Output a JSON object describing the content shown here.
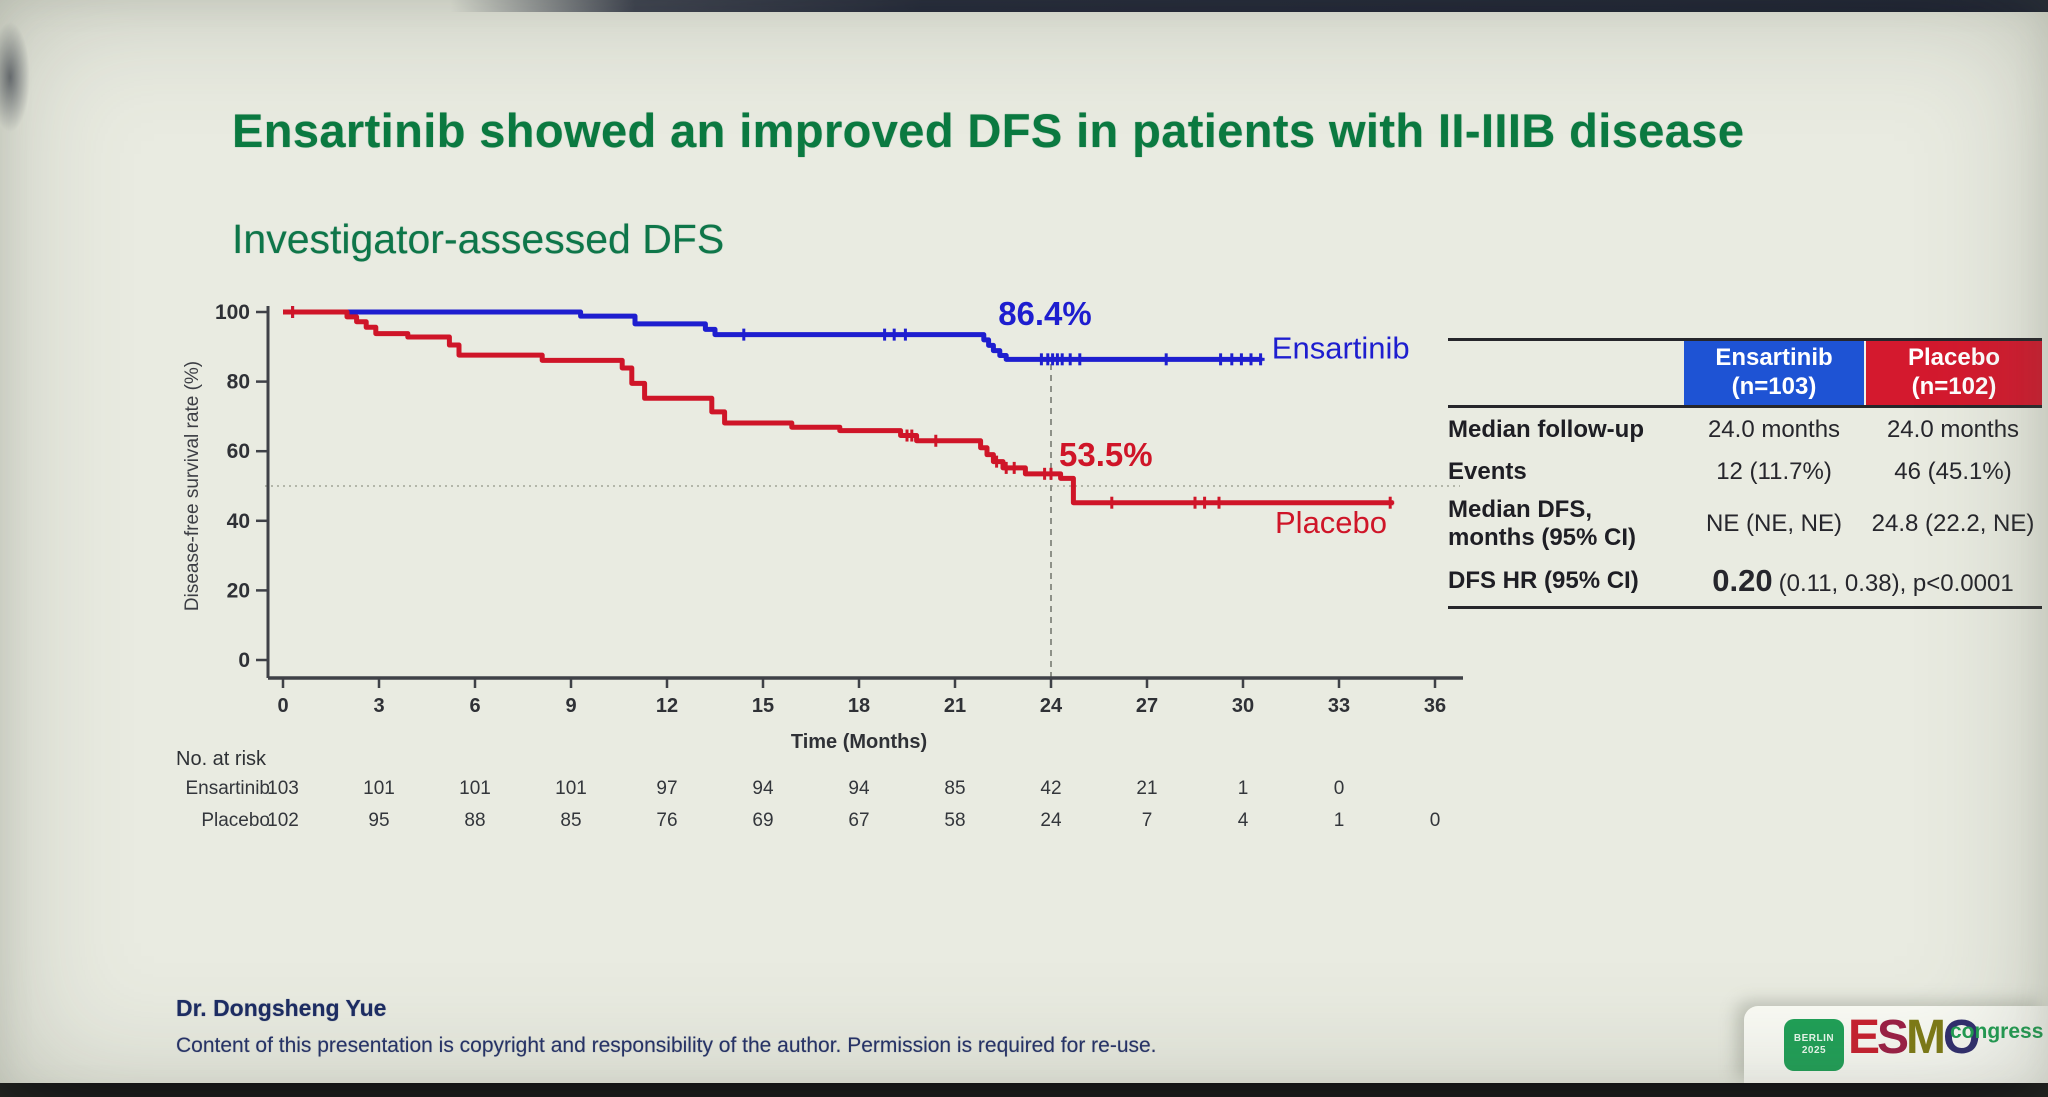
{
  "slide": {
    "title": "Ensartinib showed an improved DFS in patients with II-IIIB disease",
    "subtitle": "Investigator-assessed DFS"
  },
  "colors": {
    "title_green": "#0b7a41",
    "ensartinib_blue": "#1e1ecf",
    "placebo_red": "#cf1528",
    "table_header_blue": "#1e53d4",
    "table_header_red": "#d4192e",
    "axis": "#3f4147",
    "ref_line": "#b3b6a9",
    "footer_navy": "#1c2c63"
  },
  "chart_data": {
    "type": "line",
    "subtype": "kaplan-meier-step",
    "title": "",
    "xlabel": "Time (Months)",
    "ylabel": "Disease-free survival rate (%)",
    "xlim": [
      0,
      36
    ],
    "ylim": [
      0,
      100
    ],
    "xticks": [
      0,
      3,
      6,
      9,
      12,
      15,
      18,
      21,
      24,
      27,
      30,
      33,
      36
    ],
    "yticks": [
      0,
      20,
      40,
      60,
      80,
      100
    ],
    "grid": false,
    "reference_lines": {
      "horizontal_pct": 50,
      "vertical_month": 24
    },
    "series": [
      {
        "name": "Ensartinib",
        "color": "#1e1ecf",
        "end_month": 30.6,
        "landmark": {
          "text": "86.4%",
          "anchor_month": 22.35,
          "anchor_pct": 96.2
        },
        "label_anchor": {
          "month": 30.9,
          "pct": 86.6
        },
        "steps": [
          [
            0,
            100
          ],
          [
            9.3,
            98.8
          ],
          [
            11.0,
            96.6
          ],
          [
            13.2,
            95.0
          ],
          [
            13.5,
            93.5
          ],
          [
            21.9,
            92.0
          ],
          [
            22.05,
            90.4
          ],
          [
            22.2,
            88.9
          ],
          [
            22.4,
            87.5
          ],
          [
            22.6,
            86.4
          ]
        ],
        "censors": [
          [
            0.3,
            100
          ],
          [
            14.4,
            93.5
          ],
          [
            18.8,
            93.5
          ],
          [
            19.1,
            93.5
          ],
          [
            19.45,
            93.5
          ],
          [
            23.7,
            86.4
          ],
          [
            23.9,
            86.4
          ],
          [
            24.05,
            86.4
          ],
          [
            24.2,
            86.4
          ],
          [
            24.35,
            86.4
          ],
          [
            24.6,
            86.4
          ],
          [
            24.9,
            86.4
          ],
          [
            27.6,
            86.4
          ],
          [
            29.3,
            86.4
          ],
          [
            29.65,
            86.4
          ],
          [
            29.95,
            86.4
          ],
          [
            30.25,
            86.4
          ],
          [
            30.55,
            86.4
          ]
        ]
      },
      {
        "name": "Placebo",
        "color": "#cf1528",
        "end_month": 34.7,
        "landmark": {
          "text": "53.5%",
          "anchor_month": 24.25,
          "anchor_pct": 55.8
        },
        "label_anchor": {
          "month": 31.0,
          "pct": 36.5
        },
        "steps": [
          [
            0,
            100
          ],
          [
            2.0,
            98.6
          ],
          [
            2.3,
            97.2
          ],
          [
            2.6,
            95.6
          ],
          [
            2.9,
            93.8
          ],
          [
            3.9,
            92.8
          ],
          [
            5.2,
            90.5
          ],
          [
            5.5,
            87.6
          ],
          [
            8.1,
            86.1
          ],
          [
            10.6,
            83.9
          ],
          [
            10.9,
            79.5
          ],
          [
            11.3,
            75.2
          ],
          [
            13.4,
            71.3
          ],
          [
            13.8,
            68.1
          ],
          [
            15.9,
            66.9
          ],
          [
            17.4,
            65.9
          ],
          [
            19.3,
            64.5
          ],
          [
            19.8,
            63.0
          ],
          [
            21.8,
            61.0
          ],
          [
            22.0,
            59.0
          ],
          [
            22.2,
            57.0
          ],
          [
            22.5,
            55.2
          ],
          [
            23.2,
            53.5
          ],
          [
            24.3,
            52.2
          ],
          [
            24.7,
            45.2
          ]
        ],
        "censors": [
          [
            0.3,
            100
          ],
          [
            19.5,
            64.5
          ],
          [
            19.65,
            64.5
          ],
          [
            20.4,
            63.0
          ],
          [
            22.3,
            57.0
          ],
          [
            22.6,
            55.2
          ],
          [
            22.85,
            55.2
          ],
          [
            23.8,
            53.5
          ],
          [
            24.0,
            53.5
          ],
          [
            25.9,
            45.2
          ],
          [
            28.5,
            45.2
          ],
          [
            28.8,
            45.2
          ],
          [
            29.25,
            45.2
          ],
          [
            34.6,
            45.2
          ]
        ]
      }
    ],
    "at_risk": {
      "label": "No. at risk",
      "months": [
        0,
        3,
        6,
        9,
        12,
        15,
        18,
        21,
        24,
        27,
        30,
        33,
        36
      ],
      "rows": [
        {
          "name": "Ensartinib",
          "values": [
            "103",
            "101",
            "101",
            "101",
            "97",
            "94",
            "94",
            "85",
            "42",
            "21",
            "1",
            "0"
          ]
        },
        {
          "name": "Placebo",
          "values": [
            "102",
            "95",
            "88",
            "85",
            "76",
            "69",
            "67",
            "58",
            "24",
            "7",
            "4",
            "1",
            "0"
          ]
        }
      ]
    }
  },
  "stats_table": {
    "header": {
      "col1": {
        "line1": "Ensartinib",
        "line2": "(n=103)",
        "bg": "#1e53d4"
      },
      "col2": {
        "line1": "Placebo",
        "line2": "(n=102)",
        "bg": "#d4192e"
      }
    },
    "rows": [
      {
        "label": "Median follow-up",
        "v1": "24.0 months",
        "v2": "24.0 months"
      },
      {
        "label": "Events",
        "v1": "12 (11.7%)",
        "v2": "46 (45.1%)"
      },
      {
        "label_line1": "Median DFS,",
        "label_line2": "months (95% CI)",
        "v1": "NE (NE, NE)",
        "v2": "24.8 (22.2, NE)"
      },
      {
        "label": "DFS HR (95% CI)",
        "hr_value": "0.20",
        "hr_rest": "(0.11, 0.38), p<0.0001"
      }
    ]
  },
  "footer": {
    "author": "Dr. Dongsheng Yue",
    "copyright": "Content of this presentation is copyright and responsibility of the author. Permission is required for re-use."
  },
  "logo": {
    "badge_line1": "BERLIN",
    "badge_line2": "2025",
    "esmo_letters": [
      {
        "ch": "E",
        "color": "#c8202f"
      },
      {
        "ch": "S",
        "color": "#9c1f45"
      },
      {
        "ch": "M",
        "color": "#7e7b15"
      },
      {
        "ch": "O",
        "color": "#2f2c6e"
      }
    ],
    "congress": "congress"
  }
}
